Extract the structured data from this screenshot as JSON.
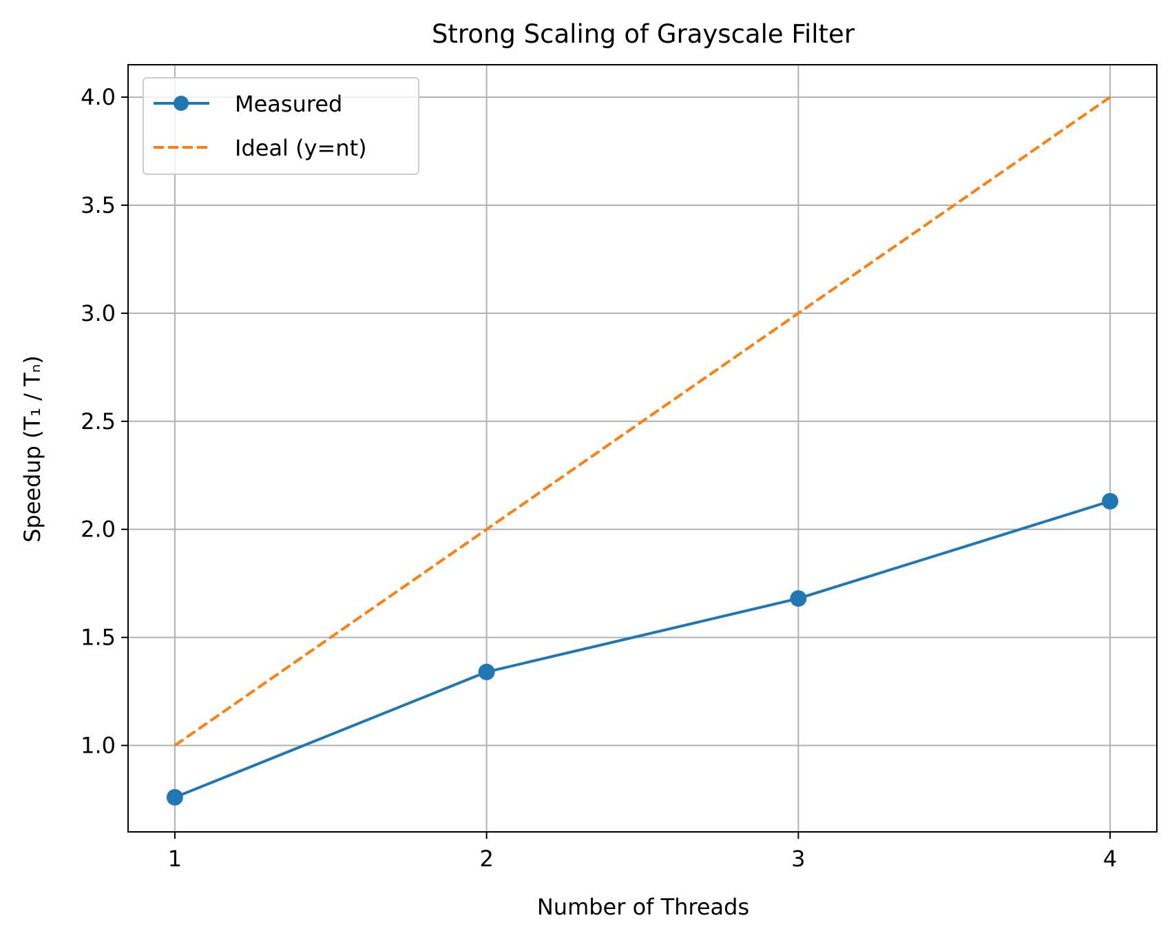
{
  "chart_data": {
    "type": "line",
    "title": "Strong Scaling of Grayscale Filter",
    "xlabel": "Number of Threads",
    "ylabel": "Speedup (T₁ / Tₙ)",
    "x": [
      1,
      2,
      3,
      4
    ],
    "x_ticks": [
      1,
      2,
      3,
      4
    ],
    "x_tick_labels": [
      "1",
      "2",
      "3",
      "4"
    ],
    "xlim": [
      0.85,
      4.15
    ],
    "ylim": [
      0.6,
      4.15
    ],
    "y_ticks": [
      1.0,
      1.5,
      2.0,
      2.5,
      3.0,
      3.5,
      4.0
    ],
    "y_tick_labels": [
      "1.0",
      "1.5",
      "2.0",
      "2.5",
      "3.0",
      "3.5",
      "4.0"
    ],
    "grid": true,
    "legend_position": "top-left",
    "series": [
      {
        "name": "Measured",
        "values": [
          0.76,
          1.34,
          1.68,
          2.13
        ],
        "color": "#1f77b4",
        "style": "solid",
        "marker": "circle"
      },
      {
        "name": "Ideal (y=nt)",
        "values": [
          1.0,
          2.0,
          3.0,
          4.0
        ],
        "color": "#ff7f0e",
        "style": "dashed",
        "marker": "none"
      }
    ]
  }
}
